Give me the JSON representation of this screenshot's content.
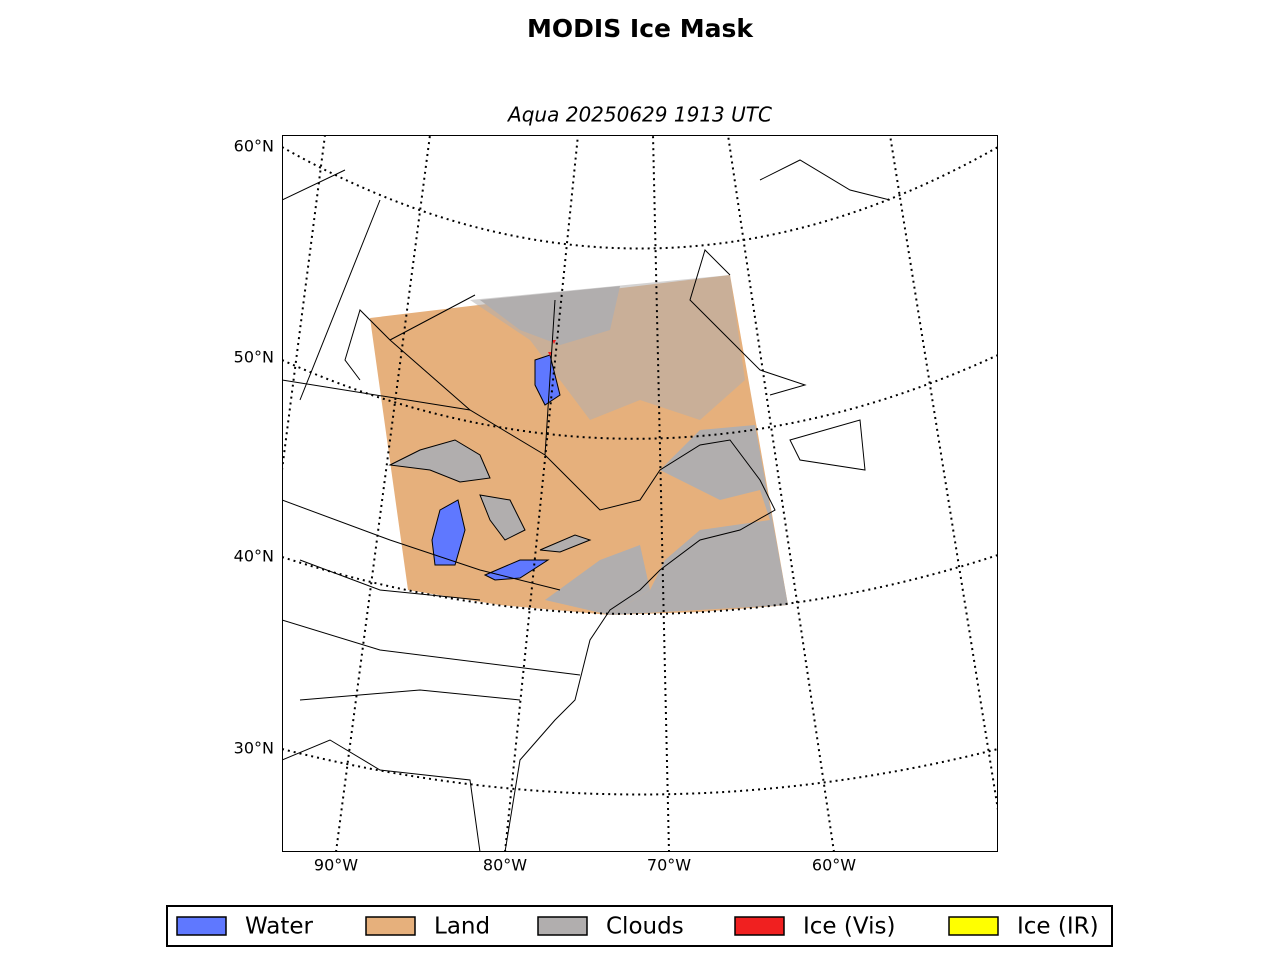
{
  "title": "MODIS Ice Mask",
  "subtitle": "Aqua 20250629 1913 UTC",
  "lat_labels": [
    "60°N",
    "50°N",
    "40°N",
    "30°N"
  ],
  "lon_labels": [
    "90°W",
    "80°W",
    "70°W",
    "60°W"
  ],
  "legend": [
    {
      "label": "Water",
      "color": "#5f78ff"
    },
    {
      "label": "Land",
      "color": "#e6b07c"
    },
    {
      "label": "Clouds",
      "color": "#b1aeae"
    },
    {
      "label": "Ice (Vis)",
      "color": "#f02020"
    },
    {
      "label": "Ice (IR)",
      "color": "#ffff00"
    }
  ]
}
